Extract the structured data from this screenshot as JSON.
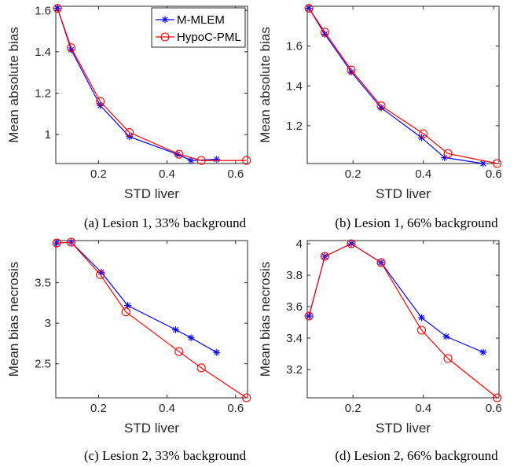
{
  "colors": {
    "mmlem": "#0000ff",
    "hypoc": "#ff0000",
    "axis": "#262626"
  },
  "legend": {
    "placement": "top-right",
    "panel": 0
  },
  "chart_data": [
    {
      "type": "line",
      "caption": "(a) Lesion 1, 33% background",
      "xlabel": "STD liver",
      "ylabel": "Mean absolute bias",
      "xlim": [
        0.075,
        0.635
      ],
      "ylim": [
        0.86,
        1.62
      ],
      "xticks": [
        "0.2",
        "0.4",
        "0.6"
      ],
      "yticks": [
        "1",
        "1.2",
        "1.4",
        "1.6"
      ],
      "series": [
        {
          "name": "M-MLEM",
          "marker": "asterisk",
          "x": [
            0.08,
            0.12,
            0.205,
            0.29,
            0.43,
            0.47,
            0.545
          ],
          "y": [
            1.61,
            1.41,
            1.14,
            0.99,
            0.905,
            0.875,
            0.88
          ]
        },
        {
          "name": "HypoC-PML",
          "marker": "circle",
          "x": [
            0.08,
            0.12,
            0.205,
            0.29,
            0.435,
            0.5,
            0.632
          ],
          "y": [
            1.61,
            1.42,
            1.16,
            1.01,
            0.905,
            0.875,
            0.875
          ]
        }
      ]
    },
    {
      "type": "line",
      "caption": "(b) Lesion 1, 66% background",
      "xlabel": "STD liver",
      "ylabel": "Mean absolute bias",
      "xlim": [
        0.07,
        0.615
      ],
      "ylim": [
        1.01,
        1.8
      ],
      "xticks": [
        "0.2",
        "0.4",
        "0.6"
      ],
      "yticks": [
        "1.2",
        "1.4",
        "1.6"
      ],
      "series": [
        {
          "name": "M-MLEM",
          "marker": "asterisk",
          "x": [
            0.075,
            0.12,
            0.195,
            0.28,
            0.395,
            0.46,
            0.57
          ],
          "y": [
            1.79,
            1.66,
            1.47,
            1.29,
            1.14,
            1.04,
            1.01
          ]
        },
        {
          "name": "HypoC-PML",
          "marker": "circle",
          "x": [
            0.075,
            0.12,
            0.195,
            0.28,
            0.4,
            0.47,
            0.61
          ],
          "y": [
            1.79,
            1.67,
            1.48,
            1.3,
            1.16,
            1.06,
            1.01
          ]
        }
      ]
    },
    {
      "type": "line",
      "caption": "(c) Lesion 2, 33% background",
      "xlabel": "STD liver",
      "ylabel": "Mean bias necrosis",
      "xlim": [
        0.075,
        0.635
      ],
      "ylim": [
        2.08,
        4.02
      ],
      "xticks": [
        "0.2",
        "0.4",
        "0.6"
      ],
      "yticks": [
        "2.5",
        "3",
        "3.5"
      ],
      "series": [
        {
          "name": "M-MLEM",
          "marker": "asterisk",
          "x": [
            0.078,
            0.12,
            0.208,
            0.285,
            0.425,
            0.47,
            0.545
          ],
          "y": [
            3.99,
            4.0,
            3.63,
            3.22,
            2.92,
            2.82,
            2.64
          ]
        },
        {
          "name": "HypoC-PML",
          "marker": "circle",
          "x": [
            0.078,
            0.12,
            0.205,
            0.28,
            0.435,
            0.5,
            0.632
          ],
          "y": [
            3.99,
            4.0,
            3.6,
            3.14,
            2.65,
            2.45,
            2.08
          ]
        }
      ]
    },
    {
      "type": "line",
      "caption": "(d) Lesion 2, 66% background",
      "xlabel": "STD liver",
      "ylabel": "Mean bias necrosis",
      "xlim": [
        0.07,
        0.615
      ],
      "ylim": [
        3.02,
        4.02
      ],
      "xticks": [
        "0.2",
        "0.4",
        "0.6"
      ],
      "yticks": [
        "3.2",
        "3.4",
        "3.6",
        "3.8",
        "4"
      ],
      "series": [
        {
          "name": "M-MLEM",
          "marker": "asterisk",
          "x": [
            0.075,
            0.12,
            0.195,
            0.28,
            0.395,
            0.465,
            0.57
          ],
          "y": [
            3.54,
            3.92,
            4.0,
            3.88,
            3.53,
            3.41,
            3.31
          ]
        },
        {
          "name": "HypoC-PML",
          "marker": "circle",
          "x": [
            0.075,
            0.12,
            0.195,
            0.28,
            0.395,
            0.47,
            0.61
          ],
          "y": [
            3.54,
            3.92,
            4.0,
            3.88,
            3.45,
            3.27,
            3.02
          ]
        }
      ]
    }
  ]
}
